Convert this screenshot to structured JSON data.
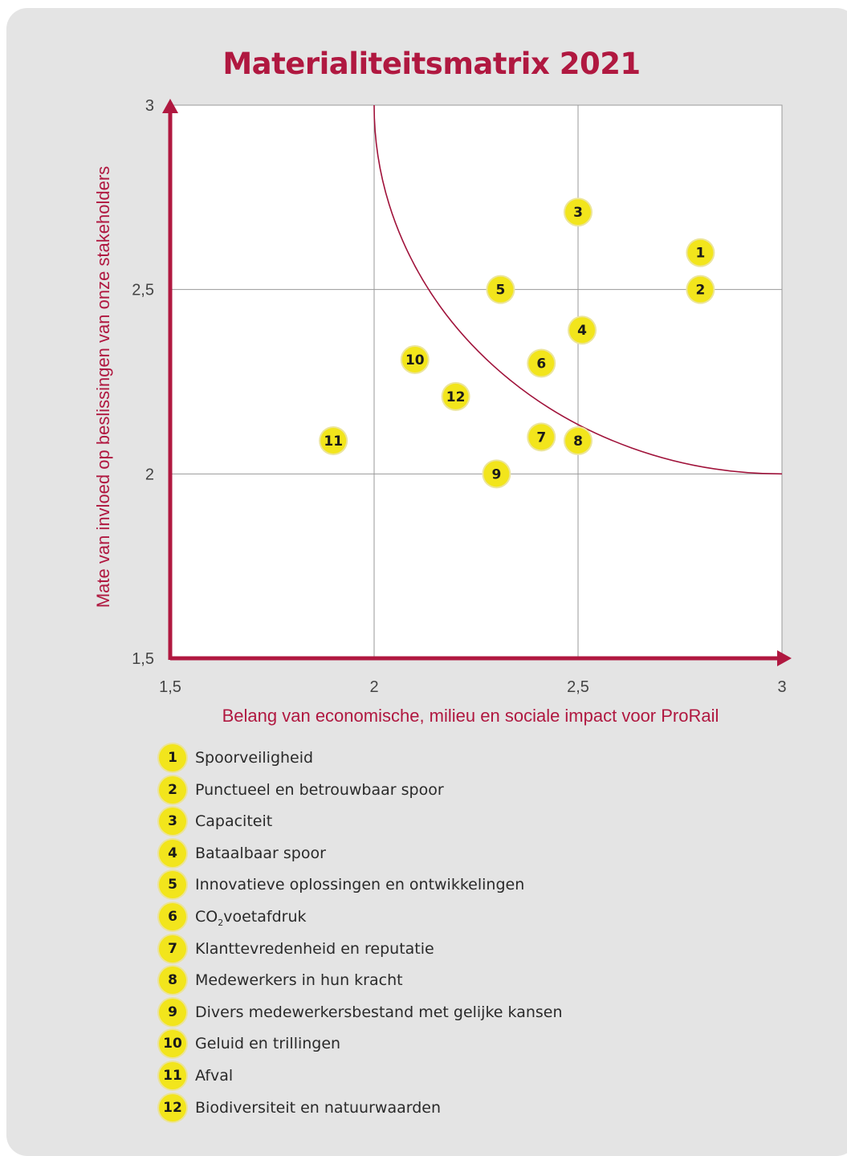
{
  "title": "Materialiteitsmatrix 2021",
  "colors": {
    "accent": "#b01840",
    "marker": "#f2e51c",
    "background": "#e4e4e4",
    "plot": "#ffffff"
  },
  "chart_data": {
    "type": "scatter",
    "title": "Materialiteitsmatrix 2021",
    "xlabel": "Belang van economische, milieu en sociale impact voor ProRail",
    "ylabel": "Mate van invloed op beslissingen van onze stakeholders",
    "xlim": [
      1.5,
      3
    ],
    "ylim": [
      1.5,
      3
    ],
    "x_ticks": [
      1.5,
      2,
      2.5,
      3
    ],
    "y_ticks": [
      1.5,
      2,
      2.5,
      3
    ],
    "x_tick_labels": [
      "1,5",
      "2",
      "2,5",
      "3"
    ],
    "y_tick_labels": [
      "1,5",
      "2",
      "2,5",
      "3"
    ],
    "grid": true,
    "points": [
      {
        "id": "1",
        "x": 2.8,
        "y": 2.6
      },
      {
        "id": "2",
        "x": 2.8,
        "y": 2.5
      },
      {
        "id": "3",
        "x": 2.5,
        "y": 2.71
      },
      {
        "id": "4",
        "x": 2.51,
        "y": 2.39
      },
      {
        "id": "5",
        "x": 2.31,
        "y": 2.5
      },
      {
        "id": "6",
        "x": 2.41,
        "y": 2.3
      },
      {
        "id": "7",
        "x": 2.41,
        "y": 2.1
      },
      {
        "id": "8",
        "x": 2.5,
        "y": 2.09
      },
      {
        "id": "9",
        "x": 2.3,
        "y": 2.0
      },
      {
        "id": "10",
        "x": 2.1,
        "y": 2.31
      },
      {
        "id": "11",
        "x": 1.9,
        "y": 2.09
      },
      {
        "id": "12",
        "x": 2.2,
        "y": 2.21
      }
    ],
    "threshold_curve": {
      "type": "quarter-arc",
      "x_from": 2,
      "x_to": 3,
      "y_from": 3,
      "y_to": 2
    }
  },
  "legend": [
    {
      "num": "1",
      "label": "Spoorveiligheid"
    },
    {
      "num": "2",
      "label": "Punctueel en betrouwbaar spoor"
    },
    {
      "num": "3",
      "label": "Capaciteit"
    },
    {
      "num": "4",
      "label": "Bataalbaar spoor"
    },
    {
      "num": "5",
      "label": "Innovatieve oplossingen en ontwikkelingen"
    },
    {
      "num": "6",
      "label": "CO",
      "sub": "2",
      "rest": "voetafdruk"
    },
    {
      "num": "7",
      "label": "Klanttevredenheid en reputatie"
    },
    {
      "num": "8",
      "label": "Medewerkers in hun kracht"
    },
    {
      "num": "9",
      "label": "Divers medewerkersbestand met gelijke kansen"
    },
    {
      "num": "10",
      "label": "Geluid en trillingen"
    },
    {
      "num": "11",
      "label": "Afval"
    },
    {
      "num": "12",
      "label": "Biodiversiteit en natuurwaarden"
    }
  ]
}
